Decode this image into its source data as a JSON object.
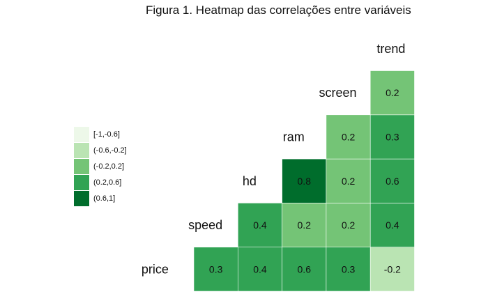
{
  "title": "Figura 1. Heatmap das correlações entre variáveis",
  "chart_data": {
    "type": "heatmap",
    "variables": [
      "price",
      "speed",
      "hd",
      "ram",
      "screen",
      "trend"
    ],
    "cells": [
      {
        "row": "price",
        "col": "speed",
        "value": 0.3
      },
      {
        "row": "price",
        "col": "hd",
        "value": 0.4
      },
      {
        "row": "price",
        "col": "ram",
        "value": 0.6
      },
      {
        "row": "price",
        "col": "screen",
        "value": 0.3
      },
      {
        "row": "price",
        "col": "trend",
        "value": -0.2
      },
      {
        "row": "speed",
        "col": "hd",
        "value": 0.4
      },
      {
        "row": "speed",
        "col": "ram",
        "value": 0.2
      },
      {
        "row": "speed",
        "col": "screen",
        "value": 0.2
      },
      {
        "row": "speed",
        "col": "trend",
        "value": 0.4
      },
      {
        "row": "hd",
        "col": "ram",
        "value": 0.8
      },
      {
        "row": "hd",
        "col": "screen",
        "value": 0.2
      },
      {
        "row": "hd",
        "col": "trend",
        "value": 0.6
      },
      {
        "row": "ram",
        "col": "screen",
        "value": 0.2
      },
      {
        "row": "ram",
        "col": "trend",
        "value": 0.3
      },
      {
        "row": "screen",
        "col": "trend",
        "value": 0.2
      }
    ],
    "legend": {
      "position": "left",
      "bins": [
        {
          "label": "[-1,-0.6]",
          "color": "#edf8e9"
        },
        {
          "label": "(-0.6,-0.2]",
          "color": "#bae4b3"
        },
        {
          "label": "(-0.2,0.2]",
          "color": "#74c476"
        },
        {
          "label": "(0.2,0.6]",
          "color": "#31a354"
        },
        {
          "label": "(0.6,1]",
          "color": "#006d2c"
        }
      ]
    },
    "grid": false
  }
}
